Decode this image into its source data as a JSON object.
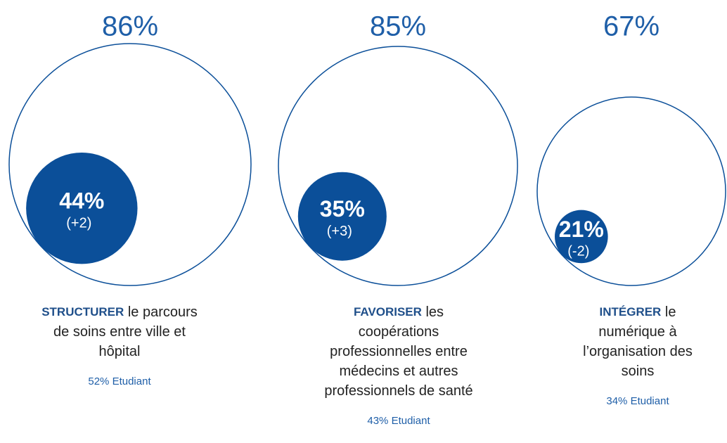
{
  "chart_data": {
    "type": "nested-bubble",
    "color": "#0b4f99",
    "text_color": "#1f5fa8",
    "outer": {
      "values": [
        86,
        85,
        67
      ],
      "value_labels": [
        "86%",
        "85%",
        "67%"
      ]
    },
    "inner": {
      "values": [
        44,
        35,
        21
      ],
      "value_labels": [
        "44%",
        "35%",
        "21%"
      ]
    },
    "changes": {
      "values": [
        2,
        3,
        -2
      ],
      "value_labels": [
        "(+2)",
        "(+3)",
        "(-2)"
      ]
    },
    "labels": [
      {
        "bold": "STRUCTURER",
        "lines": [
          "le parcours",
          "de soins entre ville et",
          "hôpital"
        ]
      },
      {
        "bold": "FAVORISER",
        "lines": [
          "les",
          "coopérations",
          "professionnelles entre",
          "médecins et autres",
          "professionnels de santé"
        ]
      },
      {
        "bold": "INTÉGRER",
        "lines": [
          "le",
          "numérique à",
          "l’organisation des",
          "soins"
        ]
      }
    ],
    "notes": [
      "52% Etudiant",
      "43% Etudiant",
      "34% Etudiant"
    ]
  }
}
